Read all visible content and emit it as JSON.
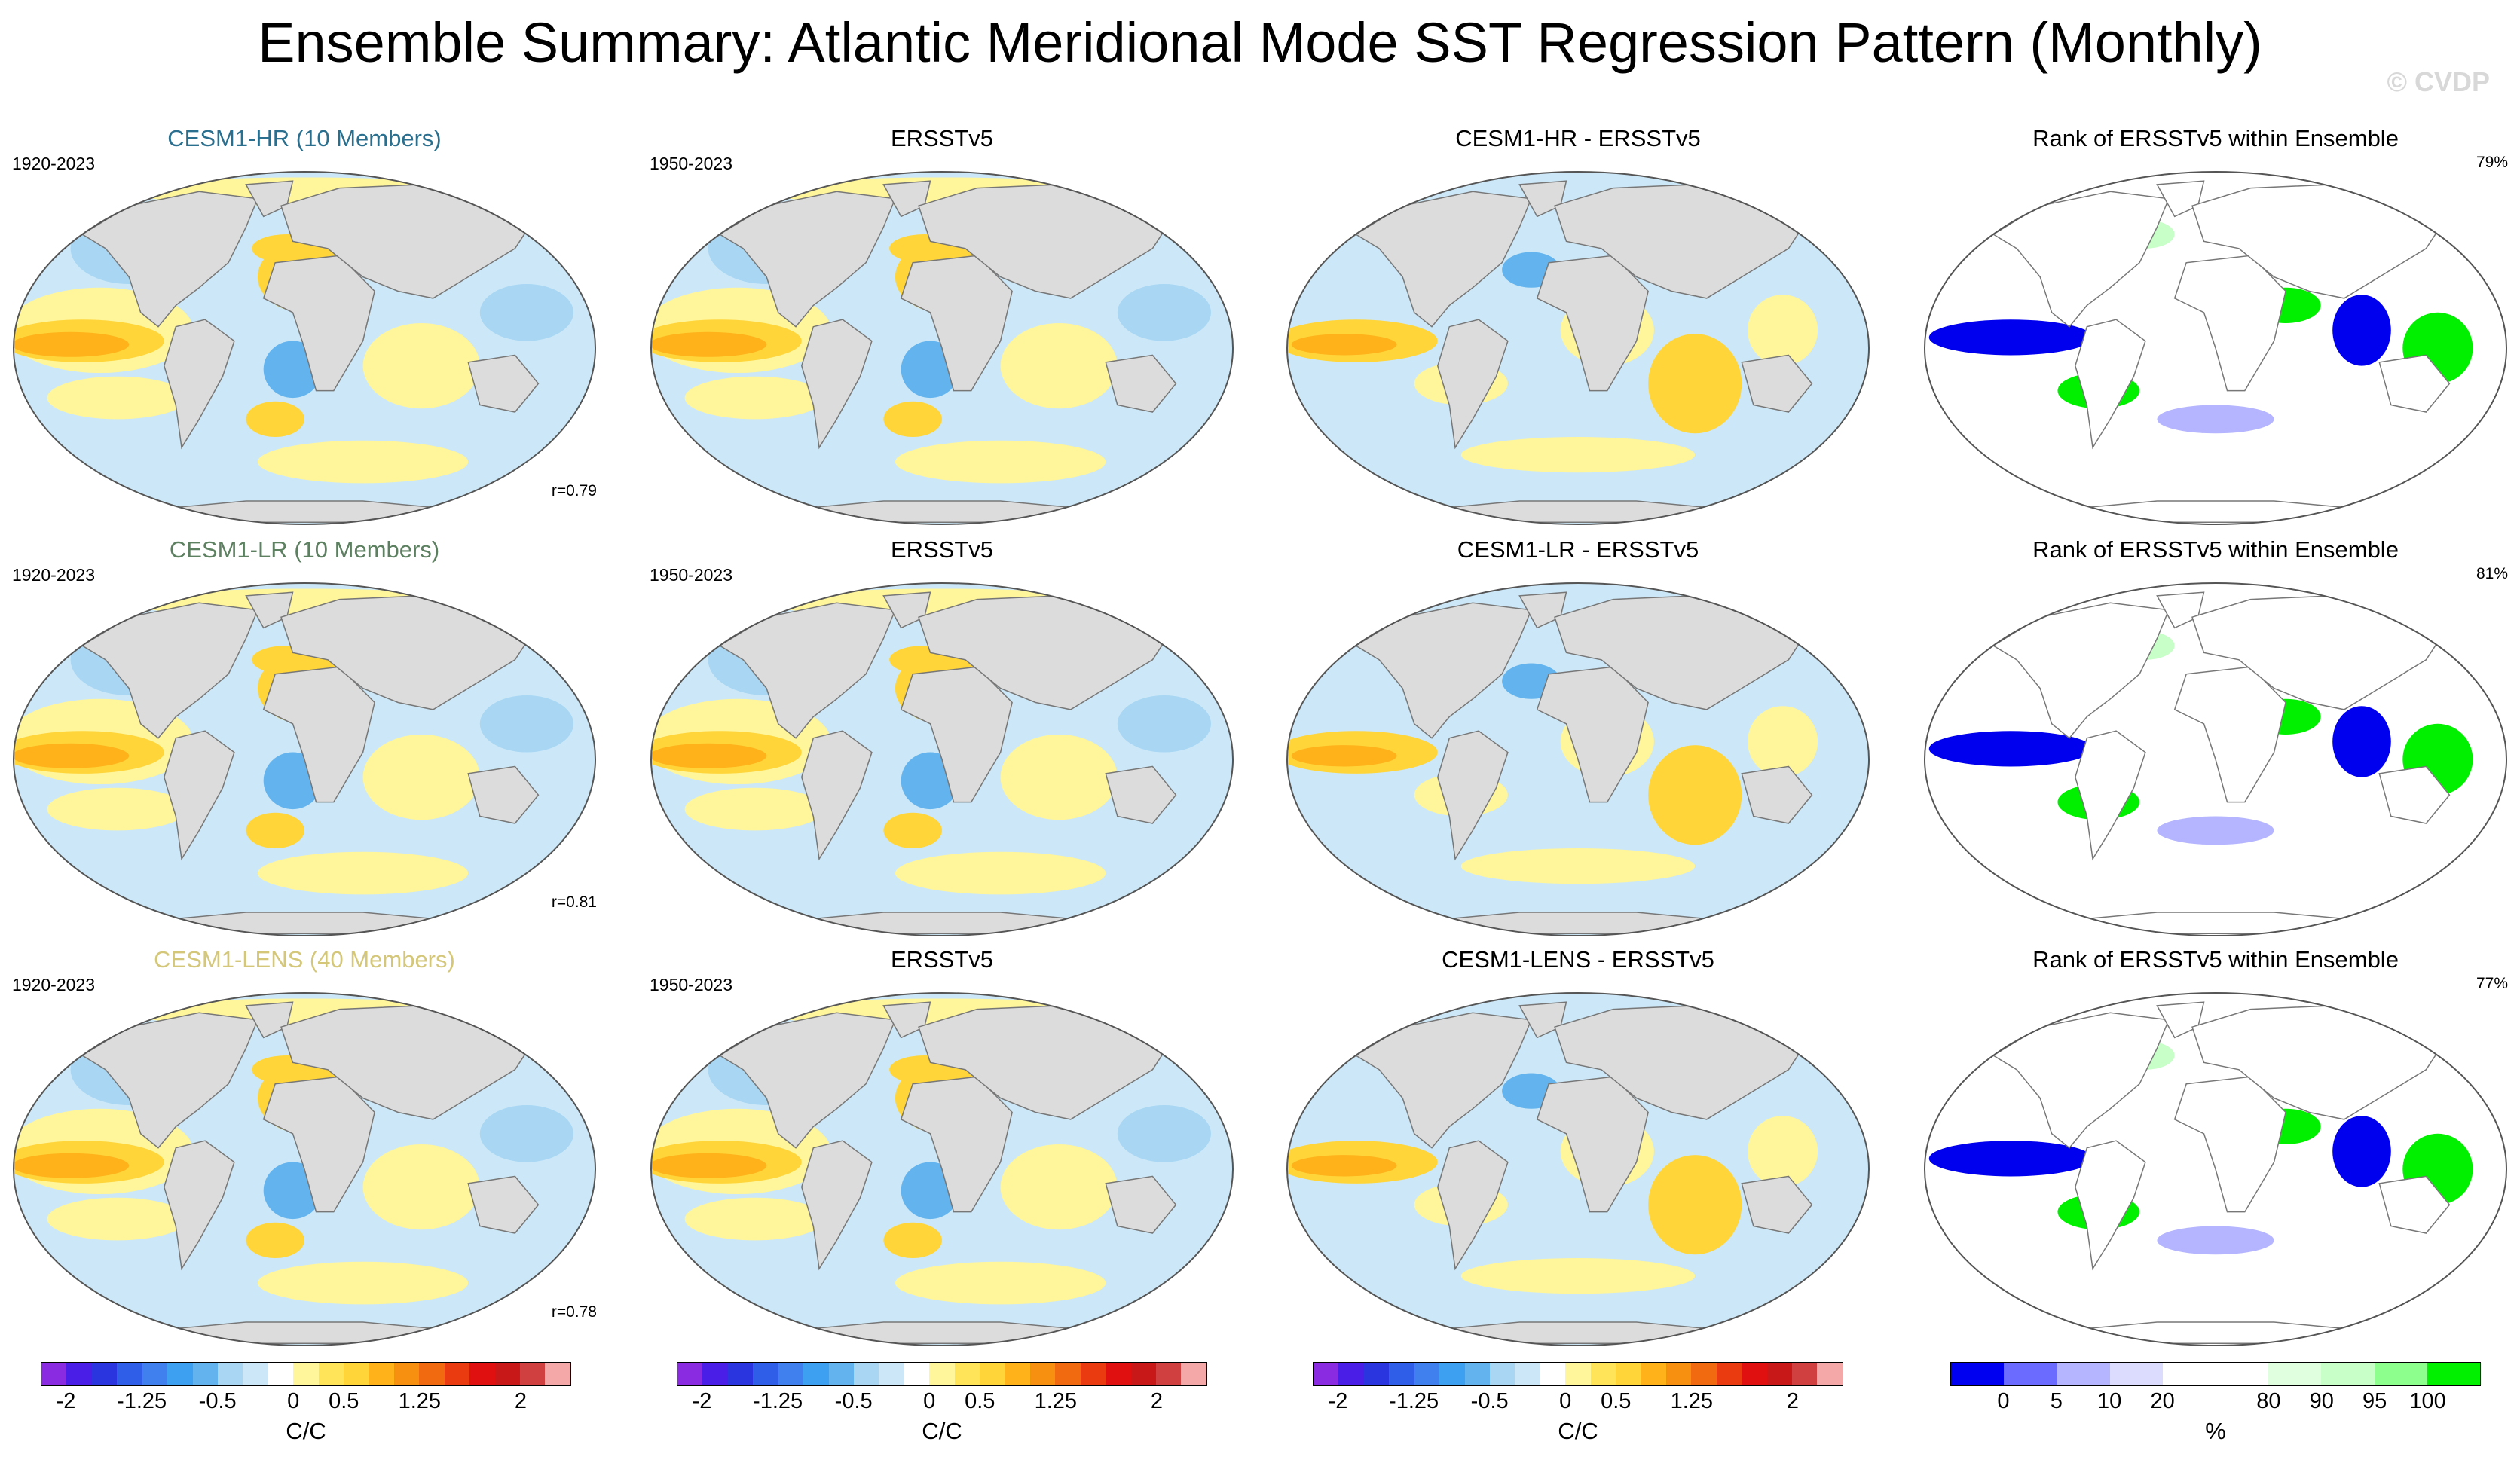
{
  "title": "Ensemble Summary: Atlantic Meridional Mode SST Regression Pattern (Monthly)",
  "watermark": "© CVDP",
  "colors": {
    "model_hr": "#2b6f8f",
    "model_lr": "#5c8060",
    "model_lens": "#d4c77a",
    "land": "#dcdcdc",
    "ocean_neutral": "#ffffff",
    "warm_1": "#fff59a",
    "warm_2": "#ffd53a",
    "warm_3": "#ffb21a",
    "warm_4": "#f78f10",
    "cool_1": "#cce8f8",
    "cool_2": "#a8d6f3",
    "cool_3": "#63b4ee",
    "rank_low": "#0000ee",
    "rank_mid_low": "#b4b4ff",
    "rank_high": "#00f000",
    "rank_mid_high": "#c8ffc8"
  },
  "rows": [
    {
      "model_title": "CESM1-HR (10 Members)",
      "model_color_key": "model_hr",
      "model_years": "1920-2023",
      "correlation": "r=0.79",
      "obs_title": "ERSSTv5",
      "obs_years": "1950-2023",
      "diff_title": "CESM1-HR - ERSSTv5",
      "rank_title": "Rank of ERSSTv5 within Ensemble",
      "rank_percent": "79%"
    },
    {
      "model_title": "CESM1-LR (10 Members)",
      "model_color_key": "model_lr",
      "model_years": "1920-2023",
      "correlation": "r=0.81",
      "obs_title": "ERSSTv5",
      "obs_years": "1950-2023",
      "diff_title": "CESM1-LR - ERSSTv5",
      "rank_title": "Rank of ERSSTv5 within Ensemble",
      "rank_percent": "81%"
    },
    {
      "model_title": "CESM1-LENS (40 Members)",
      "model_color_key": "model_lens",
      "model_years": "1920-2023",
      "correlation": "r=0.78",
      "obs_title": "ERSSTv5",
      "obs_years": "1950-2023",
      "diff_title": "CESM1-LENS - ERSSTv5",
      "rank_title": "Rank of ERSSTv5 within Ensemble",
      "rank_percent": "77%"
    }
  ],
  "sst_colorbar": {
    "colors": [
      "#8a2be2",
      "#4b1ee8",
      "#2a35e0",
      "#2f5fe8",
      "#3f80ee",
      "#3ea0f0",
      "#63b4ee",
      "#a8d6f3",
      "#cce8f8",
      "#ffffff",
      "#fff59a",
      "#ffe45a",
      "#ffd53a",
      "#ffb21a",
      "#f78f10",
      "#f26a10",
      "#ea3a10",
      "#e01010",
      "#c81818",
      "#d04040",
      "#f4a8a8"
    ],
    "ticks": [
      "-2",
      "-1.25",
      "-0.5",
      "0",
      "0.5",
      "1.25",
      "2"
    ],
    "tick_positions": [
      1,
      4,
      7,
      10,
      12,
      15,
      19
    ],
    "unit": "C/C"
  },
  "rank_colorbar": {
    "colors": [
      "#0000f0",
      "#6b6bff",
      "#b4b4ff",
      "#dcdcff",
      "#ffffff",
      "#ffffff",
      "#dfffdf",
      "#c8ffc8",
      "#8cff8c",
      "#00f000"
    ],
    "ticks": [
      "0",
      "5",
      "10",
      "20",
      "80",
      "90",
      "95",
      "100"
    ],
    "tick_edges": [
      1,
      2,
      3,
      4,
      6,
      7,
      8,
      9
    ],
    "unit": "%"
  }
}
